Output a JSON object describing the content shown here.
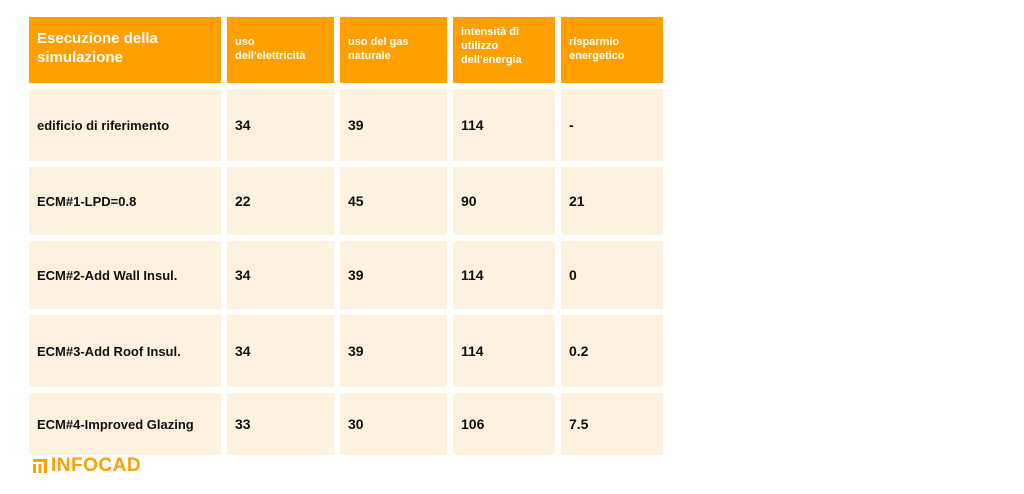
{
  "table": {
    "headers": [
      "Esecuzione della simulazione",
      "uso dell'elettricità",
      "uso del gas naturale",
      "intensità di utilizzo dell'energia",
      "risparmio energetico"
    ],
    "rows": [
      [
        "edificio di riferimento",
        "34",
        "39",
        "114",
        "-"
      ],
      [
        "ECM#1-LPD=0.8",
        "22",
        "45",
        "90",
        "21"
      ],
      [
        "ECM#2-Add Wall Insul.",
        "34",
        "39",
        "114",
        "0"
      ],
      [
        "ECM#3-Add Roof Insul.",
        "34",
        "39",
        "114",
        "0.2"
      ],
      [
        "ECM#4-Improved Glazing",
        "33",
        "30",
        "106",
        "7.5"
      ]
    ]
  },
  "brand": {
    "name": "INFOCAD",
    "icon": "infocad-logo-icon",
    "color": "#ff9f00"
  },
  "colors": {
    "header_bg": "#ff9f00",
    "cell_bg": "#fff1df"
  }
}
